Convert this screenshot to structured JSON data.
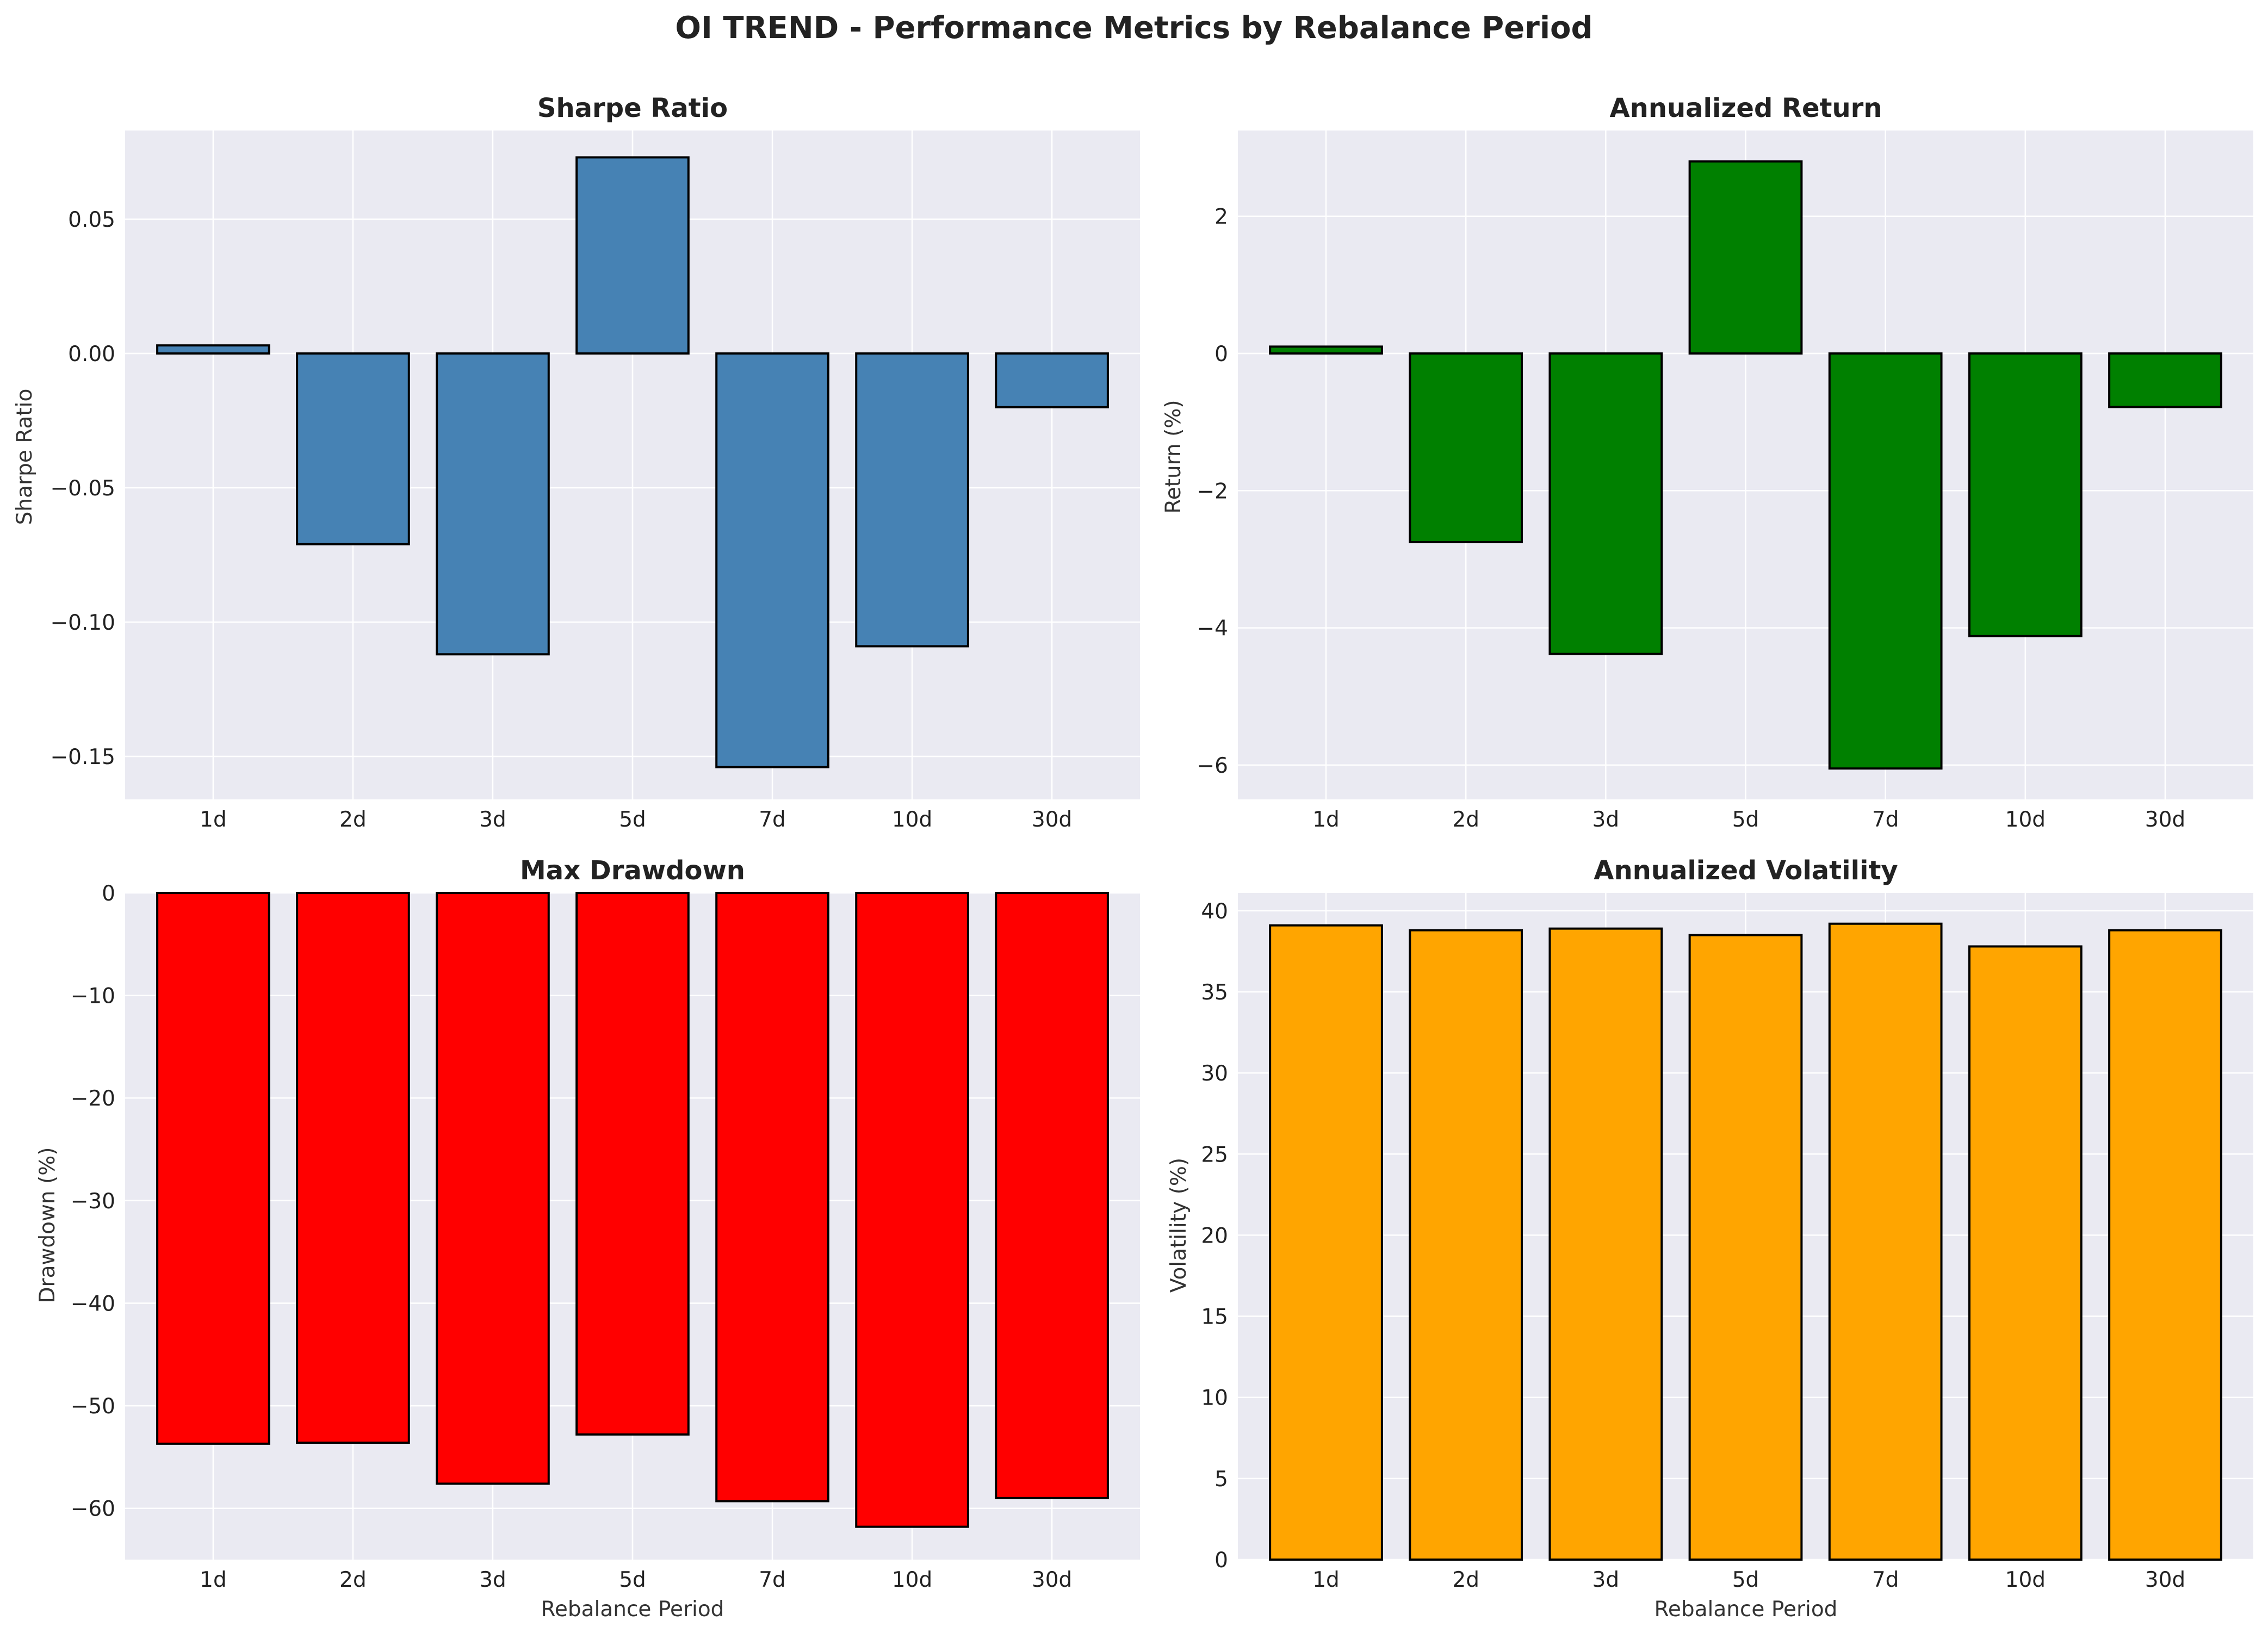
{
  "title": "OI TREND - Performance Metrics by Rebalance Period",
  "colors": {
    "background": "#ffffff",
    "plot_bg": "#eaeaf2",
    "grid": "#ffffff",
    "edge": "#000000",
    "text": "#222222"
  },
  "chart_data": [
    {
      "type": "bar",
      "title": "Sharpe Ratio",
      "xlabel": "",
      "ylabel": "Sharpe Ratio",
      "categories": [
        "1d",
        "2d",
        "3d",
        "5d",
        "7d",
        "10d",
        "30d"
      ],
      "values": [
        0.003,
        -0.071,
        -0.112,
        0.073,
        -0.154,
        -0.109,
        -0.02
      ],
      "ylim": [
        -0.166,
        0.083
      ],
      "yticks": [
        -0.15,
        -0.1,
        -0.05,
        0.0,
        0.05
      ],
      "yticklabels": [
        "−0.15",
        "−0.10",
        "−0.05",
        "0.00",
        "0.05"
      ],
      "color": "#4682b4",
      "grid": true
    },
    {
      "type": "bar",
      "title": "Annualized Return",
      "xlabel": "",
      "ylabel": "Return (%)",
      "categories": [
        "1d",
        "2d",
        "3d",
        "5d",
        "7d",
        "10d",
        "30d"
      ],
      "values": [
        0.1,
        -2.75,
        -4.38,
        2.8,
        -6.05,
        -4.12,
        -0.78
      ],
      "ylim": [
        -6.5,
        3.25
      ],
      "yticks": [
        -6,
        -4,
        -2,
        0,
        2
      ],
      "yticklabels": [
        "−6",
        "−4",
        "−2",
        "0",
        "2"
      ],
      "color": "#008000",
      "grid": true
    },
    {
      "type": "bar",
      "title": "Max Drawdown",
      "xlabel": "Rebalance Period",
      "ylabel": "Drawdown (%)",
      "categories": [
        "1d",
        "2d",
        "3d",
        "5d",
        "7d",
        "10d",
        "30d"
      ],
      "values": [
        -53.7,
        -53.6,
        -57.6,
        -52.8,
        -59.3,
        -61.8,
        -59.0
      ],
      "ylim": [
        -65,
        0
      ],
      "yticks": [
        -60,
        -50,
        -40,
        -30,
        -20,
        -10,
        0
      ],
      "yticklabels": [
        "−60",
        "−50",
        "−40",
        "−30",
        "−20",
        "−10",
        "0"
      ],
      "color": "#ff0000",
      "grid": true
    },
    {
      "type": "bar",
      "title": "Annualized Volatility",
      "xlabel": "Rebalance Period",
      "ylabel": "Volatility (%)",
      "categories": [
        "1d",
        "2d",
        "3d",
        "5d",
        "7d",
        "10d",
        "30d"
      ],
      "values": [
        39.1,
        38.8,
        38.9,
        38.5,
        39.2,
        37.8,
        38.8
      ],
      "ylim": [
        0,
        41.1
      ],
      "yticks": [
        0,
        5,
        10,
        15,
        20,
        25,
        30,
        35,
        40
      ],
      "yticklabels": [
        "0",
        "5",
        "10",
        "15",
        "20",
        "25",
        "30",
        "35",
        "40"
      ],
      "color": "#ffa500",
      "grid": true
    }
  ]
}
